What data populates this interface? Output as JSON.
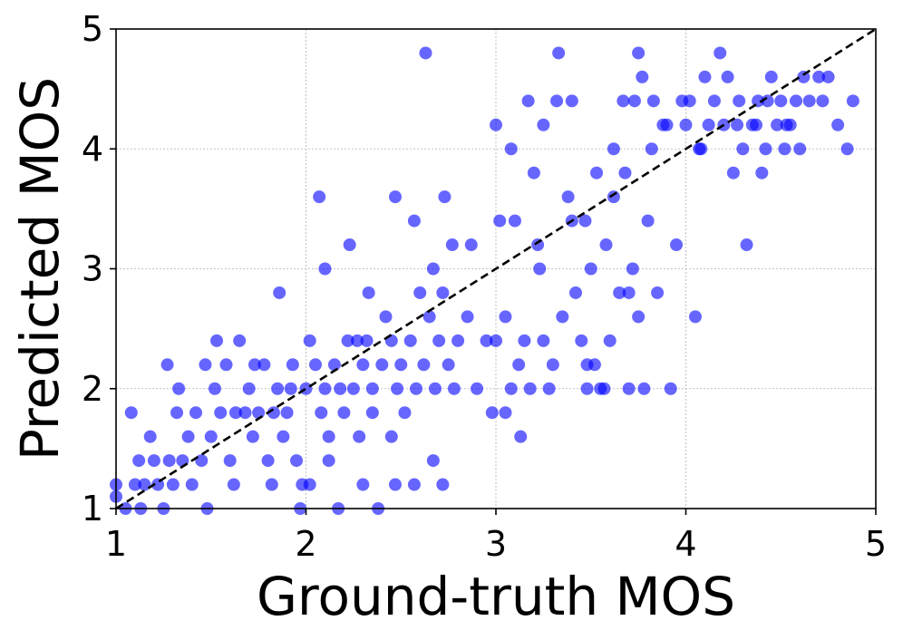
{
  "chart_data": {
    "type": "scatter",
    "title": "",
    "xlabel": "Ground-truth MOS",
    "ylabel": "Predicted MOS",
    "xlim": [
      1,
      5
    ],
    "ylim": [
      1,
      5
    ],
    "xticks": [
      "1",
      "2",
      "3",
      "4",
      "5"
    ],
    "yticks": [
      "1",
      "2",
      "3",
      "4",
      "5"
    ],
    "grid": true,
    "reference_line": {
      "from": [
        1,
        1
      ],
      "to": [
        5,
        5
      ],
      "style": "dashed",
      "color": "#000000"
    },
    "point_color": "#0000ff",
    "point_opacity": 0.6,
    "points": [
      [
        1.0,
        1.2
      ],
      [
        1.05,
        1.0
      ],
      [
        1.1,
        1.2
      ],
      [
        1.12,
        1.4
      ],
      [
        1.15,
        1.2
      ],
      [
        1.18,
        1.6
      ],
      [
        1.2,
        1.4
      ],
      [
        1.22,
        1.2
      ],
      [
        1.25,
        1.0
      ],
      [
        1.28,
        1.4
      ],
      [
        1.3,
        1.2
      ],
      [
        1.32,
        1.8
      ],
      [
        1.35,
        1.4
      ],
      [
        1.38,
        1.6
      ],
      [
        1.4,
        1.2
      ],
      [
        1.42,
        1.8
      ],
      [
        1.45,
        1.4
      ],
      [
        1.48,
        1.0
      ],
      [
        1.5,
        1.6
      ],
      [
        1.52,
        2.0
      ],
      [
        1.55,
        1.8
      ],
      [
        1.58,
        2.2
      ],
      [
        1.6,
        1.4
      ],
      [
        1.62,
        1.2
      ],
      [
        1.65,
        2.4
      ],
      [
        1.68,
        1.8
      ],
      [
        1.7,
        2.0
      ],
      [
        1.72,
        1.6
      ],
      [
        1.75,
        1.8
      ],
      [
        1.78,
        2.2
      ],
      [
        1.8,
        1.4
      ],
      [
        1.82,
        1.2
      ],
      [
        1.85,
        2.0
      ],
      [
        1.88,
        1.6
      ],
      [
        1.9,
        1.8
      ],
      [
        1.92,
        2.0
      ],
      [
        1.95,
        1.4
      ],
      [
        1.98,
        1.2
      ],
      [
        1.0,
        1.1
      ],
      [
        1.08,
        1.8
      ],
      [
        1.13,
        1.0
      ],
      [
        1.27,
        2.2
      ],
      [
        1.33,
        2.0
      ],
      [
        1.47,
        2.2
      ],
      [
        1.53,
        2.4
      ],
      [
        1.63,
        1.8
      ],
      [
        1.73,
        2.2
      ],
      [
        1.83,
        1.8
      ],
      [
        1.93,
        2.2
      ],
      [
        1.97,
        1.0
      ],
      [
        1.86,
        2.8
      ],
      [
        2.0,
        2.0
      ],
      [
        2.02,
        2.4
      ],
      [
        2.05,
        2.2
      ],
      [
        2.08,
        1.8
      ],
      [
        2.1,
        2.0
      ],
      [
        2.12,
        1.6
      ],
      [
        2.15,
        2.2
      ],
      [
        2.18,
        2.0
      ],
      [
        2.2,
        1.8
      ],
      [
        2.22,
        2.4
      ],
      [
        2.25,
        2.0
      ],
      [
        2.28,
        1.6
      ],
      [
        2.3,
        2.2
      ],
      [
        2.32,
        2.4
      ],
      [
        2.35,
        2.0
      ],
      [
        2.38,
        1.0
      ],
      [
        2.4,
        2.2
      ],
      [
        2.42,
        2.6
      ],
      [
        2.45,
        2.4
      ],
      [
        2.48,
        2.0
      ],
      [
        2.5,
        2.2
      ],
      [
        2.52,
        1.8
      ],
      [
        2.55,
        2.4
      ],
      [
        2.58,
        2.0
      ],
      [
        2.6,
        2.8
      ],
      [
        2.62,
        2.2
      ],
      [
        2.65,
        2.6
      ],
      [
        2.68,
        2.0
      ],
      [
        2.7,
        2.4
      ],
      [
        2.72,
        2.8
      ],
      [
        2.75,
        2.2
      ],
      [
        2.78,
        2.0
      ],
      [
        2.8,
        2.4
      ],
      [
        2.85,
        2.6
      ],
      [
        2.9,
        2.0
      ],
      [
        2.95,
        2.4
      ],
      [
        2.98,
        1.8
      ],
      [
        2.07,
        3.6
      ],
      [
        2.1,
        3.0
      ],
      [
        2.23,
        3.2
      ],
      [
        2.27,
        2.4
      ],
      [
        2.33,
        2.8
      ],
      [
        2.47,
        3.6
      ],
      [
        2.57,
        3.4
      ],
      [
        2.63,
        4.8
      ],
      [
        2.67,
        3.0
      ],
      [
        2.73,
        3.6
      ],
      [
        2.77,
        3.2
      ],
      [
        2.87,
        3.2
      ],
      [
        2.47,
        1.2
      ],
      [
        2.57,
        1.2
      ],
      [
        2.67,
        1.4
      ],
      [
        2.72,
        1.2
      ],
      [
        2.12,
        1.4
      ],
      [
        2.02,
        1.2
      ],
      [
        2.17,
        1.0
      ],
      [
        2.3,
        1.2
      ],
      [
        2.35,
        1.8
      ],
      [
        2.45,
        1.6
      ],
      [
        3.0,
        2.4
      ],
      [
        3.02,
        3.4
      ],
      [
        3.05,
        2.6
      ],
      [
        3.08,
        2.0
      ],
      [
        3.1,
        3.4
      ],
      [
        3.12,
        2.2
      ],
      [
        3.15,
        2.4
      ],
      [
        3.18,
        2.0
      ],
      [
        3.2,
        3.8
      ],
      [
        3.22,
        3.2
      ],
      [
        3.25,
        2.4
      ],
      [
        3.28,
        2.0
      ],
      [
        3.3,
        2.2
      ],
      [
        3.32,
        4.4
      ],
      [
        3.35,
        2.6
      ],
      [
        3.38,
        3.6
      ],
      [
        3.4,
        3.4
      ],
      [
        3.42,
        2.8
      ],
      [
        3.45,
        2.4
      ],
      [
        3.48,
        2.0
      ],
      [
        3.5,
        3.0
      ],
      [
        3.52,
        2.2
      ],
      [
        3.55,
        2.0
      ],
      [
        3.58,
        3.2
      ],
      [
        3.6,
        2.4
      ],
      [
        3.62,
        3.6
      ],
      [
        3.65,
        2.8
      ],
      [
        3.68,
        3.8
      ],
      [
        3.7,
        2.0
      ],
      [
        3.72,
        3.0
      ],
      [
        3.75,
        2.6
      ],
      [
        3.78,
        2.0
      ],
      [
        3.8,
        3.4
      ],
      [
        3.82,
        4.0
      ],
      [
        3.85,
        2.8
      ],
      [
        3.88,
        4.2
      ],
      [
        3.9,
        4.2
      ],
      [
        3.92,
        2.0
      ],
      [
        3.95,
        3.2
      ],
      [
        3.98,
        4.4
      ],
      [
        3.0,
        4.2
      ],
      [
        3.08,
        4.0
      ],
      [
        3.17,
        4.4
      ],
      [
        3.25,
        4.2
      ],
      [
        3.33,
        4.8
      ],
      [
        3.4,
        4.4
      ],
      [
        3.47,
        3.4
      ],
      [
        3.53,
        3.8
      ],
      [
        3.62,
        4.0
      ],
      [
        3.67,
        4.4
      ],
      [
        3.73,
        4.4
      ],
      [
        3.75,
        4.8
      ],
      [
        3.77,
        4.6
      ],
      [
        3.83,
        4.4
      ],
      [
        3.13,
        1.6
      ],
      [
        3.05,
        1.8
      ],
      [
        3.23,
        3.0
      ],
      [
        3.48,
        2.2
      ],
      [
        3.57,
        2.0
      ],
      [
        3.7,
        2.8
      ],
      [
        4.0,
        4.2
      ],
      [
        4.02,
        4.4
      ],
      [
        4.05,
        2.6
      ],
      [
        4.07,
        4.0
      ],
      [
        4.1,
        4.6
      ],
      [
        4.12,
        4.2
      ],
      [
        4.15,
        4.4
      ],
      [
        4.18,
        4.8
      ],
      [
        4.2,
        4.2
      ],
      [
        4.22,
        4.6
      ],
      [
        4.25,
        3.8
      ],
      [
        4.28,
        4.4
      ],
      [
        4.3,
        4.0
      ],
      [
        4.32,
        3.2
      ],
      [
        4.35,
        4.2
      ],
      [
        4.38,
        4.4
      ],
      [
        4.4,
        3.8
      ],
      [
        4.42,
        4.0
      ],
      [
        4.45,
        4.6
      ],
      [
        4.48,
        4.2
      ],
      [
        4.5,
        4.4
      ],
      [
        4.52,
        4.0
      ],
      [
        4.55,
        4.2
      ],
      [
        4.58,
        4.4
      ],
      [
        4.6,
        4.0
      ],
      [
        4.62,
        4.6
      ],
      [
        4.65,
        4.4
      ],
      [
        4.7,
        4.6
      ],
      [
        4.72,
        4.4
      ],
      [
        4.75,
        4.6
      ],
      [
        4.8,
        4.2
      ],
      [
        4.85,
        4.0
      ],
      [
        4.88,
        4.4
      ],
      [
        4.08,
        4.0
      ],
      [
        4.27,
        4.2
      ],
      [
        4.43,
        4.4
      ],
      [
        4.37,
        4.2
      ],
      [
        4.53,
        4.2
      ]
    ]
  }
}
